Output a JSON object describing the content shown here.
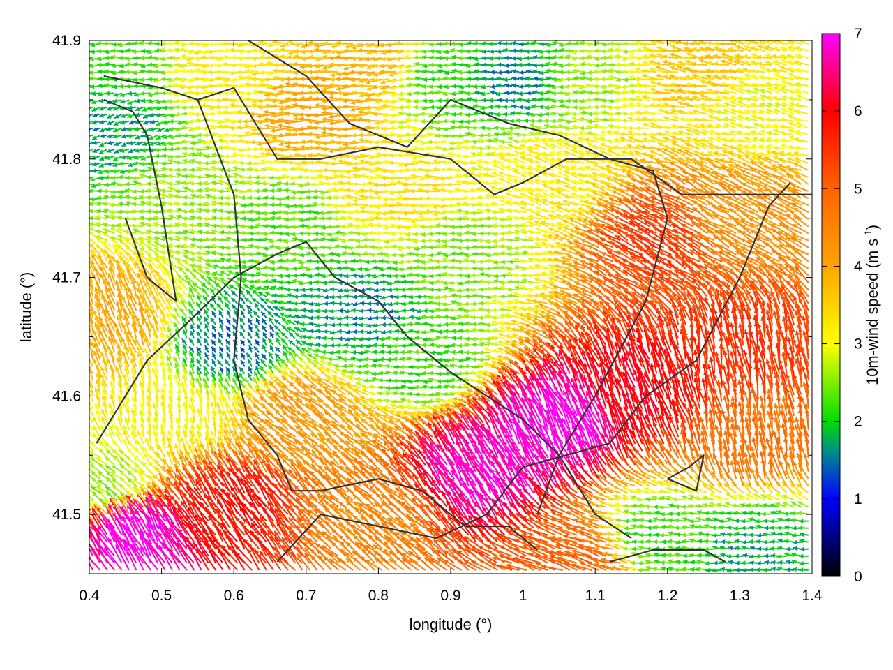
{
  "chart_data": {
    "type": "vector-field",
    "xlabel": "longitude (°)",
    "ylabel": "latitude (°)",
    "xlim": [
      0.4,
      1.4
    ],
    "ylim": [
      41.45,
      41.9
    ],
    "xticks": [
      0.4,
      0.5,
      0.6,
      0.7,
      0.8,
      0.9,
      1.0,
      1.1,
      1.2,
      1.3,
      1.4
    ],
    "xtick_labels": [
      "0.4",
      "0.5",
      "0.6",
      "0.7",
      "0.8",
      "0.9",
      "1",
      "1.1",
      "1.2",
      "1.3",
      "1.4"
    ],
    "yticks": [
      41.5,
      41.6,
      41.7,
      41.8,
      41.9
    ],
    "ytick_labels": [
      "41.5",
      "41.6",
      "41.7",
      "41.8",
      "41.9"
    ],
    "colorbar": {
      "label": "10m-wind speed (m s",
      "label_sup": "-1",
      "label_end": ")",
      "range": [
        0,
        7
      ],
      "ticks": [
        "0",
        "1",
        "2",
        "3",
        "4",
        "5",
        "6",
        "7"
      ],
      "stops": [
        {
          "value": 0,
          "color": "#000000"
        },
        {
          "value": 1,
          "color": "#0000ff"
        },
        {
          "value": 1.6,
          "color": "#008c8c"
        },
        {
          "value": 2,
          "color": "#00dd00"
        },
        {
          "value": 3,
          "color": "#ffff00"
        },
        {
          "value": 4,
          "color": "#ffa500"
        },
        {
          "value": 5,
          "color": "#ff6400"
        },
        {
          "value": 6,
          "color": "#ff0000"
        },
        {
          "value": 7,
          "color": "#ff00ff"
        }
      ]
    },
    "wind_regions": [
      {
        "lon": 0.44,
        "lat": 41.83,
        "speed": 1.7,
        "dir": 200
      },
      {
        "lon": 0.43,
        "lat": 41.88,
        "speed": 2.2,
        "dir": 180
      },
      {
        "lon": 0.6,
        "lat": 41.87,
        "speed": 3.2,
        "dir": 180
      },
      {
        "lon": 0.72,
        "lat": 41.84,
        "speed": 4.0,
        "dir": 180
      },
      {
        "lon": 0.8,
        "lat": 41.88,
        "speed": 3.8,
        "dir": 185
      },
      {
        "lon": 0.9,
        "lat": 41.87,
        "speed": 2.2,
        "dir": 180
      },
      {
        "lon": 0.99,
        "lat": 41.87,
        "speed": 1.6,
        "dir": 180
      },
      {
        "lon": 1.1,
        "lat": 41.87,
        "speed": 2.6,
        "dir": 180
      },
      {
        "lon": 1.25,
        "lat": 41.87,
        "speed": 3.6,
        "dir": 170
      },
      {
        "lon": 1.32,
        "lat": 41.84,
        "speed": 3.0,
        "dir": 165
      },
      {
        "lon": 0.55,
        "lat": 41.77,
        "speed": 2.6,
        "dir": 170
      },
      {
        "lon": 0.68,
        "lat": 41.74,
        "speed": 2.3,
        "dir": 180
      },
      {
        "lon": 0.84,
        "lat": 41.77,
        "speed": 3.3,
        "dir": 180
      },
      {
        "lon": 0.93,
        "lat": 41.72,
        "speed": 2.5,
        "dir": 180
      },
      {
        "lon": 1.05,
        "lat": 41.78,
        "speed": 3.2,
        "dir": 160
      },
      {
        "lon": 1.2,
        "lat": 41.73,
        "speed": 5.4,
        "dir": 150
      },
      {
        "lon": 1.3,
        "lat": 41.75,
        "speed": 4.3,
        "dir": 150
      },
      {
        "lon": 0.6,
        "lat": 41.64,
        "speed": 1.5,
        "dir": 120
      },
      {
        "lon": 0.78,
        "lat": 41.67,
        "speed": 1.6,
        "dir": 185
      },
      {
        "lon": 0.87,
        "lat": 41.63,
        "speed": 2.2,
        "dir": 180
      },
      {
        "lon": 0.43,
        "lat": 41.66,
        "speed": 4.0,
        "dir": 110
      },
      {
        "lon": 0.52,
        "lat": 41.58,
        "speed": 3.1,
        "dir": 100
      },
      {
        "lon": 0.7,
        "lat": 41.58,
        "speed": 4.2,
        "dir": 140
      },
      {
        "lon": 1.05,
        "lat": 41.57,
        "speed": 7.0,
        "dir": 115
      },
      {
        "lon": 0.95,
        "lat": 41.53,
        "speed": 6.8,
        "dir": 120
      },
      {
        "lon": 1.17,
        "lat": 41.6,
        "speed": 6.0,
        "dir": 110
      },
      {
        "lon": 1.32,
        "lat": 41.56,
        "speed": 4.8,
        "dir": 100
      },
      {
        "lon": 1.3,
        "lat": 41.63,
        "speed": 5.5,
        "dir": 100
      },
      {
        "lon": 0.6,
        "lat": 41.5,
        "speed": 5.8,
        "dir": 125
      },
      {
        "lon": 0.47,
        "lat": 41.48,
        "speed": 7.0,
        "dir": 120
      },
      {
        "lon": 0.8,
        "lat": 41.49,
        "speed": 4.5,
        "dir": 140
      },
      {
        "lon": 1.2,
        "lat": 41.48,
        "speed": 2.2,
        "dir": 175
      },
      {
        "lon": 1.33,
        "lat": 41.47,
        "speed": 1.8,
        "dir": 175
      },
      {
        "lon": 1.08,
        "lat": 41.46,
        "speed": 5.0,
        "dir": 160
      },
      {
        "lon": 0.43,
        "lat": 41.52,
        "speed": 2.6,
        "dir": 140
      }
    ],
    "contours": [
      [
        [
          0.42,
          41.87
        ],
        [
          0.5,
          41.86
        ],
        [
          0.55,
          41.85
        ],
        [
          0.6,
          41.86
        ],
        [
          0.66,
          41.8
        ],
        [
          0.72,
          41.8
        ],
        [
          0.8,
          41.81
        ],
        [
          0.9,
          41.8
        ],
        [
          0.96,
          41.77
        ],
        [
          1.0,
          41.78
        ],
        [
          1.06,
          41.8
        ],
        [
          1.15,
          41.8
        ],
        [
          1.22,
          41.77
        ],
        [
          1.3,
          41.77
        ],
        [
          1.4,
          41.77
        ]
      ],
      [
        [
          0.42,
          41.85
        ],
        [
          0.46,
          41.84
        ],
        [
          0.48,
          41.82
        ],
        [
          0.5,
          41.76
        ],
        [
          0.52,
          41.68
        ],
        [
          0.48,
          41.7
        ],
        [
          0.45,
          41.75
        ]
      ],
      [
        [
          0.41,
          41.56
        ],
        [
          0.45,
          41.6
        ],
        [
          0.48,
          41.63
        ],
        [
          0.55,
          41.67
        ],
        [
          0.6,
          41.7
        ],
        [
          0.66,
          41.72
        ],
        [
          0.7,
          41.73
        ],
        [
          0.74,
          41.7
        ],
        [
          0.8,
          41.68
        ],
        [
          0.84,
          41.65
        ],
        [
          0.9,
          41.62
        ],
        [
          0.95,
          41.6
        ],
        [
          1.0,
          41.58
        ],
        [
          1.05,
          41.55
        ],
        [
          1.1,
          41.5
        ],
        [
          1.15,
          41.48
        ]
      ],
      [
        [
          0.55,
          41.85
        ],
        [
          0.6,
          41.77
        ],
        [
          0.61,
          41.7
        ],
        [
          0.6,
          41.63
        ],
        [
          0.62,
          41.58
        ],
        [
          0.66,
          41.55
        ],
        [
          0.68,
          41.52
        ],
        [
          0.72,
          41.52
        ],
        [
          0.8,
          41.53
        ],
        [
          0.86,
          41.52
        ],
        [
          0.92,
          41.49
        ],
        [
          0.98,
          41.49
        ],
        [
          1.02,
          41.47
        ]
      ],
      [
        [
          0.62,
          41.9
        ],
        [
          0.7,
          41.87
        ],
        [
          0.76,
          41.83
        ],
        [
          0.84,
          41.81
        ],
        [
          0.9,
          41.85
        ],
        [
          0.98,
          41.83
        ],
        [
          1.05,
          41.82
        ],
        [
          1.12,
          41.8
        ],
        [
          1.18,
          41.79
        ],
        [
          1.2,
          41.75
        ],
        [
          1.17,
          41.68
        ],
        [
          1.1,
          41.6
        ],
        [
          1.05,
          41.55
        ],
        [
          1.02,
          41.5
        ]
      ],
      [
        [
          0.66,
          41.46
        ],
        [
          0.72,
          41.5
        ],
        [
          0.8,
          41.49
        ],
        [
          0.88,
          41.48
        ],
        [
          0.95,
          41.5
        ],
        [
          1.0,
          41.54
        ],
        [
          1.06,
          41.55
        ],
        [
          1.12,
          41.56
        ],
        [
          1.17,
          41.6
        ],
        [
          1.24,
          41.63
        ],
        [
          1.3,
          41.7
        ],
        [
          1.34,
          41.76
        ],
        [
          1.37,
          41.78
        ]
      ],
      [
        [
          1.12,
          41.46
        ],
        [
          1.18,
          41.47
        ],
        [
          1.25,
          41.47
        ],
        [
          1.28,
          41.46
        ]
      ],
      [
        [
          1.2,
          41.53
        ],
        [
          1.24,
          41.52
        ],
        [
          1.25,
          41.55
        ],
        [
          1.23,
          41.54
        ],
        [
          1.2,
          41.53
        ]
      ]
    ]
  }
}
